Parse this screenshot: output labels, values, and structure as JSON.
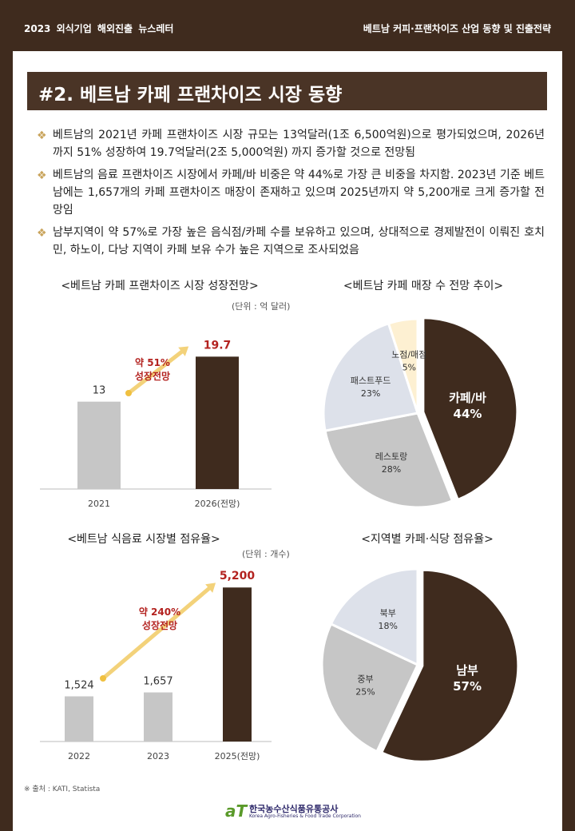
{
  "header": {
    "left": "2023 외식기업 해외진출 뉴스레터",
    "right": "베트남 커피·프랜차이즈 산업 동향 및 진출전략"
  },
  "section_title": "#2. 베트남 카페 프랜차이즈 시장 동향",
  "bullets": [
    "베트남의 2021년 카페 프랜차이즈 시장 규모는 13억달러(1조 6,500억원)으로 평가되었으며, 2026년까지 51% 성장하여 19.7억달러(2조 5,000억원) 까지 증가할 것으로 전망됨",
    "베트남의 음료 프랜차이즈 시장에서 카페/바 비중은 약 44%로 가장 큰 비중을 차지함. 2023년 기준 베트남에는 1,657개의 카페 프랜차이즈 매장이 존재하고 있으며 2025년까지 약 5,200개로 크게 증가할 전망임",
    "남부지역이 약 57%로 가장 높은 음식점/카페 수를 보유하고 있으며, 상대적으로 경제발전이 이뤄진 호치민, 하노이, 다낭 지역이 카페 보유 수가 높은 지역으로 조사되었음"
  ],
  "bullet_mark": "❖",
  "chart_titles": {
    "c1": "<베트남 카페 프랜차이즈 시장 성장전망>",
    "c2": "<베트남 카페 매장 수 전망 추이>",
    "c3": "<베트남 식음료 시장별 점유율>",
    "c4": "<지역별 카페·식당 점유율>"
  },
  "units": {
    "c1": "(단위 : 억 달러)",
    "c3": "(단위 : 개수)"
  },
  "source": "※ 출처 : KATI, Statista",
  "logo": {
    "mark": "aT",
    "name": "한국농수산식품유통공사",
    "eng": "Korea Agro-Fisheries & Food Trade Corporation"
  },
  "colors": {
    "dark": "#3f2b1e",
    "gray": "#c6c6c6",
    "light_blue": "#dde1ea",
    "cream": "#fdf0d2",
    "red": "#b3221f",
    "arrow": "#f3d27a"
  },
  "chart_data": [
    {
      "type": "bar",
      "categories": [
        "2021",
        "2026(전망)"
      ],
      "values": [
        13,
        19.7
      ],
      "value_labels": [
        "13",
        "19.7"
      ],
      "annotation": [
        "약 51%",
        "성장전망"
      ],
      "ylim": [
        0,
        22
      ]
    },
    {
      "type": "pie",
      "labels": [
        "카페/바",
        "레스토랑",
        "패스트푸드",
        "노점/매점"
      ],
      "values": [
        44,
        28,
        23,
        5
      ],
      "value_labels": [
        "44%",
        "28%",
        "23%",
        "5%"
      ],
      "colors": [
        "#3f2b1e",
        "#c6c6c6",
        "#dde1ea",
        "#fdf0d2"
      ]
    },
    {
      "type": "bar",
      "categories": [
        "2022",
        "2023",
        "2025(전망)"
      ],
      "values": [
        1524,
        1657,
        5200
      ],
      "value_labels": [
        "1,524",
        "1,657",
        "5,200"
      ],
      "annotation": [
        "약 240%",
        "성장전망"
      ],
      "ylim": [
        0,
        5800
      ]
    },
    {
      "type": "pie",
      "labels": [
        "남부",
        "중부",
        "북부"
      ],
      "values": [
        57,
        25,
        18
      ],
      "value_labels": [
        "57%",
        "25%",
        "18%"
      ],
      "colors": [
        "#3f2b1e",
        "#c6c6c6",
        "#dde1ea"
      ]
    }
  ]
}
